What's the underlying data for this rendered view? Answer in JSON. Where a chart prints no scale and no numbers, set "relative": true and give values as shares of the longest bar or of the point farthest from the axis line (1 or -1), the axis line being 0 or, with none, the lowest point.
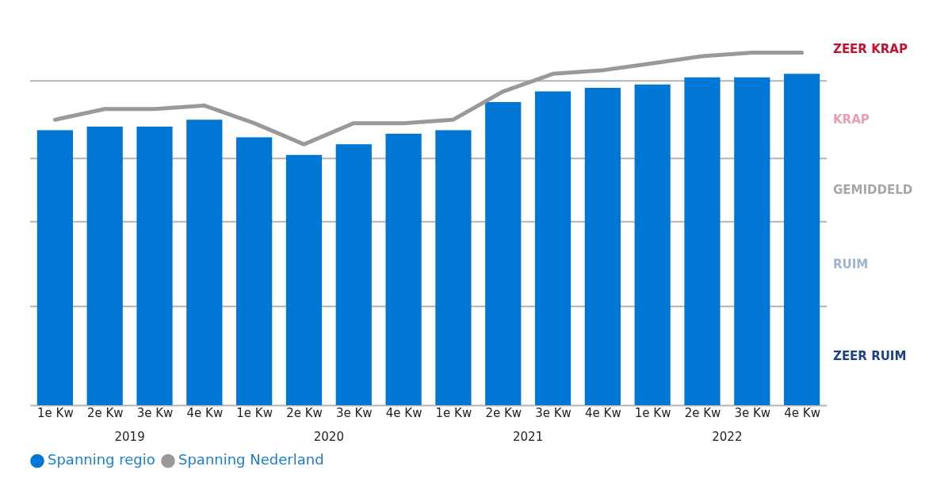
{
  "chart_data": {
    "type": "bar",
    "relative": true,
    "categories": [
      "1e Kw",
      "2e Kw",
      "3e Kw",
      "4e Kw",
      "1e Kw",
      "2e Kw",
      "3e Kw",
      "4e Kw",
      "1e Kw",
      "2e Kw",
      "3e Kw",
      "4e Kw",
      "1e Kw",
      "2e Kw",
      "3e Kw",
      "4e Kw"
    ],
    "series": [
      {
        "name": "Spanning regio",
        "color": "#0077d4",
        "values": [
          0.78,
          0.79,
          0.79,
          0.81,
          0.76,
          0.71,
          0.74,
          0.77,
          0.78,
          0.86,
          0.89,
          0.9,
          0.91,
          0.93,
          0.93,
          0.94
        ]
      },
      {
        "name": "Spanning Nederland",
        "type": "line",
        "color": "#999999",
        "values": [
          0.81,
          0.84,
          0.84,
          0.85,
          0.8,
          0.74,
          0.8,
          0.8,
          0.81,
          0.89,
          0.94,
          0.95,
          0.97,
          0.99,
          1.0,
          1.0
        ]
      }
    ],
    "annotations": [
      "ZEER KRAP",
      "KRAP",
      "GEMIDDELD",
      "RUIM",
      "ZEER RUIM",
      "2019",
      "2020",
      "2021",
      "2022"
    ],
    "ref_lines": [
      {
        "axis": "y",
        "value": 0.28,
        "color": "#b3b3b3"
      },
      {
        "axis": "y",
        "value": 0.52,
        "color": "#b3b3b3"
      },
      {
        "axis": "y",
        "value": 0.7,
        "color": "#b3b3b3"
      },
      {
        "axis": "y",
        "value": 0.92,
        "color": "#b3b3b3"
      }
    ],
    "legend": "bottom"
  }
}
